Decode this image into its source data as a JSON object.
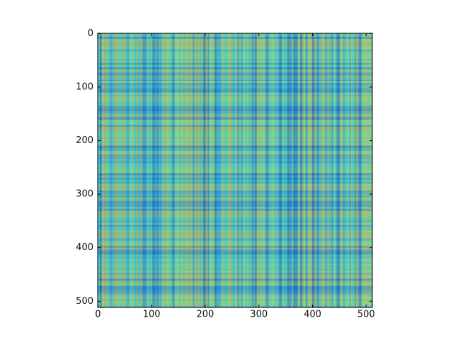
{
  "chart_data": {
    "type": "heatmap",
    "xlim": [
      -0.5,
      511.5
    ],
    "ylim": [
      511.5,
      -0.5
    ],
    "xticks": [
      0,
      100,
      200,
      300,
      400,
      500
    ],
    "yticks": [
      0,
      100,
      200,
      300,
      400,
      500
    ]
  }
}
